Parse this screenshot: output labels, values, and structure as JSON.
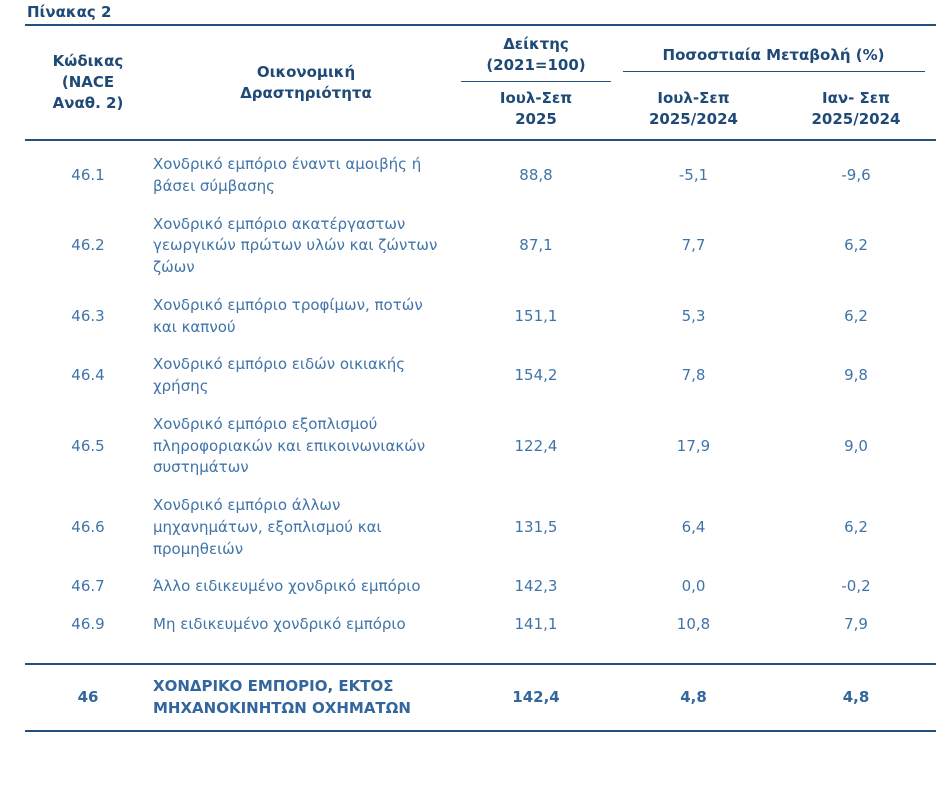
{
  "title": "Πίνακας 2",
  "colors": {
    "header_text": "#1F4977",
    "body_text": "#4074A9",
    "total_text": "#32669D",
    "rule": "#24507F",
    "background": "#FFFFFF"
  },
  "table": {
    "headers": {
      "code": "Κώδικας (NACE Αναθ. 2)",
      "activity": "Οικονομική Δραστηριότητα",
      "index_group": "Δείκτης (2021=100)",
      "index_sub": "Ιουλ-Σεπ 2025",
      "change_group": "Ποσοστιαία Μεταβολή (%)",
      "change_sub_1": "Ιουλ-Σεπ 2025/2024",
      "change_sub_2": "Ιαν- Σεπ 2025/2024"
    },
    "rows": [
      {
        "code": "46.1",
        "activity": "Χονδρικό εμπόριο έναντι αμοιβής ή βάσει σύμβασης",
        "index": "88,8",
        "change_q": "-5,1",
        "change_ytd": "-9,6"
      },
      {
        "code": "46.2",
        "activity": "Χονδρικό εμπόριο ακατέργαστων γεωργικών πρώτων υλών και ζώντων ζώων",
        "index": "87,1",
        "change_q": "7,7",
        "change_ytd": "6,2"
      },
      {
        "code": "46.3",
        "activity": "Χονδρικό εμπόριο τροφίμων, ποτών και καπνού",
        "index": "151,1",
        "change_q": "5,3",
        "change_ytd": "6,2"
      },
      {
        "code": "46.4",
        "activity": "Χονδρικό εμπόριο ειδών οικιακής χρήσης",
        "index": "154,2",
        "change_q": "7,8",
        "change_ytd": "9,8"
      },
      {
        "code": "46.5",
        "activity": "Χονδρικό εμπόριο εξοπλισμού πληροφοριακών και επικοινωνιακών συστημάτων",
        "index": "122,4",
        "change_q": "17,9",
        "change_ytd": "9,0"
      },
      {
        "code": "46.6",
        "activity": "Χονδρικό εμπόριο άλλων μηχανημάτων, εξοπλισμού και προμηθειών",
        "index": "131,5",
        "change_q": "6,4",
        "change_ytd": "6,2"
      },
      {
        "code": "46.7",
        "activity": "Άλλο ειδικευμένο χονδρικό εμπόριο",
        "index": "142,3",
        "change_q": "0,0",
        "change_ytd": "-0,2"
      },
      {
        "code": "46.9",
        "activity": "Μη ειδικευμένο χονδρικό εμπόριο",
        "index": "141,1",
        "change_q": "10,8",
        "change_ytd": "7,9"
      }
    ],
    "total": {
      "code": "46",
      "activity": "ΧΟΝΔΡΙΚΟ ΕΜΠΟΡΙΟ, ΕΚΤΟΣ ΜΗΧΑΝΟΚΙΝΗΤΩΝ ΟΧΗΜΑΤΩΝ",
      "index": "142,4",
      "change_q": "4,8",
      "change_ytd": "4,8"
    }
  }
}
